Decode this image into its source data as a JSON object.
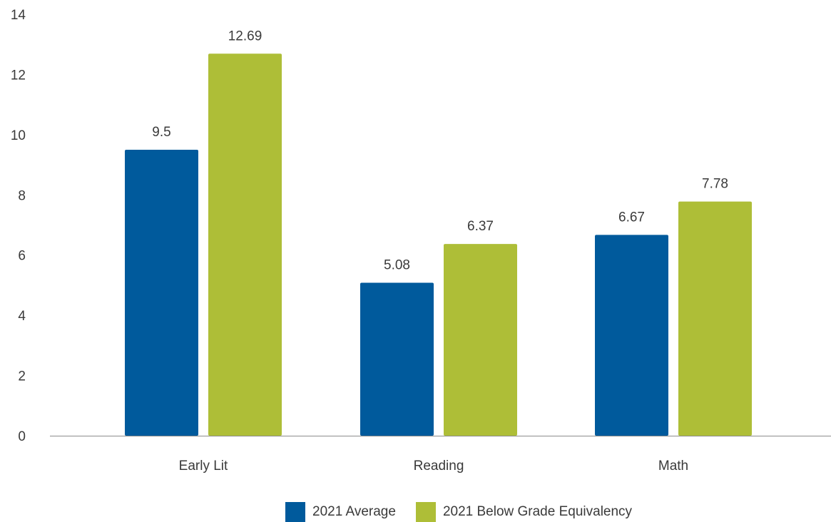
{
  "chart_data": {
    "type": "bar",
    "categories": [
      "Early Lit",
      "Reading",
      "Math"
    ],
    "series": [
      {
        "name": "2021 Average",
        "values": [
          9.5,
          5.08,
          6.67
        ],
        "labels": [
          "9.5",
          "5.08",
          "6.67"
        ],
        "color": "#005a9c"
      },
      {
        "name": "2021 Below Grade Equivalency",
        "values": [
          12.69,
          6.37,
          7.78
        ],
        "labels": [
          "12.69",
          "6.37",
          "7.78"
        ],
        "color": "#aebe37"
      }
    ],
    "yticks": [
      "0",
      "2",
      "4",
      "6",
      "8",
      "10",
      "12",
      "14"
    ],
    "ylim": [
      0,
      14
    ],
    "grid": false,
    "legend_position": "bottom-center",
    "axis_color": "#8c8c8c"
  }
}
